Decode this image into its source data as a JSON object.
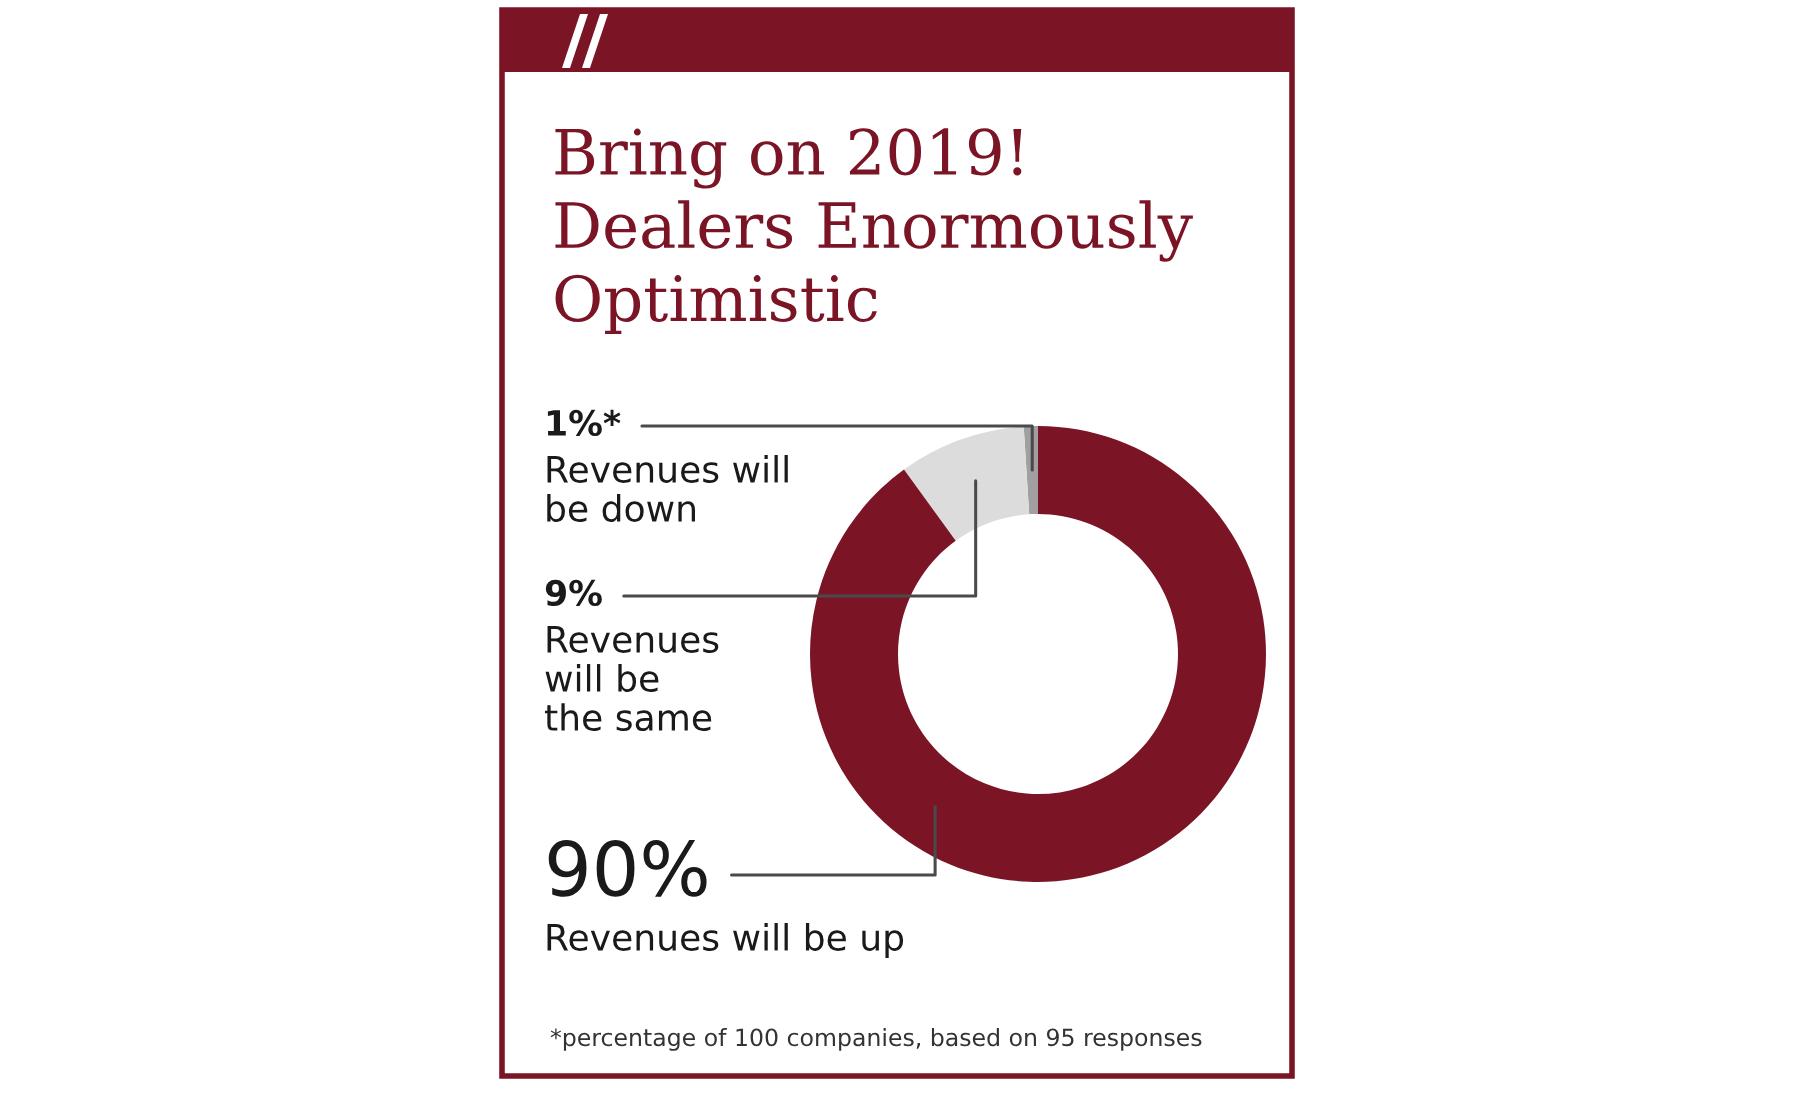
{
  "chart_data": {
    "type": "donut",
    "title": "Bring on 2019!\nDealers Enormously\nOptimistic",
    "categories": [
      "Revenues will\nbe down",
      "Revenues\nwill be\nthe same",
      "Revenues will be up"
    ],
    "values": [
      1,
      9,
      90
    ],
    "colors": [
      "#a0a0a0",
      "#dcdcdc",
      "#7b1526"
    ],
    "value_labels": [
      "1%*",
      "9%",
      "90%"
    ],
    "annotations": [
      "*percentage of 100 companies, based on 95 responses"
    ]
  }
}
